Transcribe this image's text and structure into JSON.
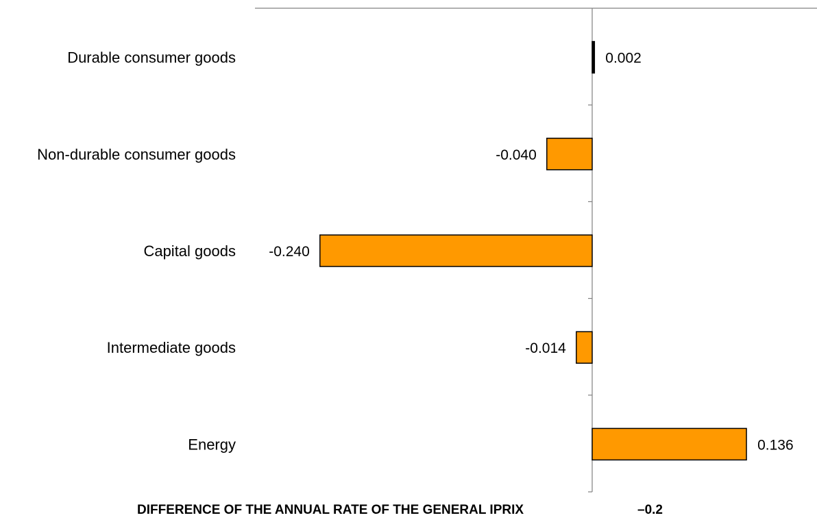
{
  "chart_data": {
    "type": "bar",
    "orientation": "horizontal",
    "categories": [
      "Durable consumer goods",
      "Non-durable consumer goods",
      "Capital goods",
      "Intermediate goods",
      "Energy"
    ],
    "values": [
      0.002,
      -0.04,
      -0.24,
      -0.014,
      0.136
    ],
    "value_labels": [
      "0.002",
      "-0.040",
      "-0.240",
      "-0.014",
      "0.136"
    ],
    "xlabel": "DIFFERENCE OF THE ANNUAL RATE OF THE GENERAL IPRIX",
    "footer_value": "–0.2",
    "grid": false,
    "legend": "none",
    "colors": {
      "bar_fill": "#FF9900",
      "bar_stroke": "#000000",
      "axis": "#808080"
    }
  }
}
